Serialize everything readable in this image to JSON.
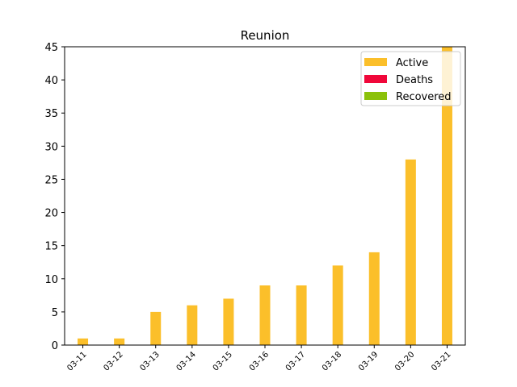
{
  "chart_data": {
    "type": "bar",
    "title": "Reunion",
    "xlabel": "",
    "ylabel": "",
    "categories": [
      "03-11",
      "03-12",
      "03-13",
      "03-14",
      "03-15",
      "03-16",
      "03-17",
      "03-18",
      "03-19",
      "03-20",
      "03-21"
    ],
    "series": [
      {
        "name": "Active",
        "color": "#fbbf2a",
        "values": [
          1,
          1,
          5,
          6,
          7,
          9,
          9,
          12,
          14,
          28,
          45
        ]
      },
      {
        "name": "Deaths",
        "color": "#f0073a",
        "values": [
          0,
          0,
          0,
          0,
          0,
          0,
          0,
          0,
          0,
          0,
          0
        ]
      },
      {
        "name": "Recovered",
        "color": "#8bc10a",
        "values": [
          0,
          0,
          0,
          0,
          0,
          0,
          0,
          0,
          0,
          0,
          0
        ]
      }
    ],
    "ylim": [
      0,
      45
    ],
    "yticks": [
      0,
      5,
      10,
      15,
      20,
      25,
      30,
      35,
      40,
      45
    ],
    "grid": false,
    "legend_position": "top-right"
  }
}
